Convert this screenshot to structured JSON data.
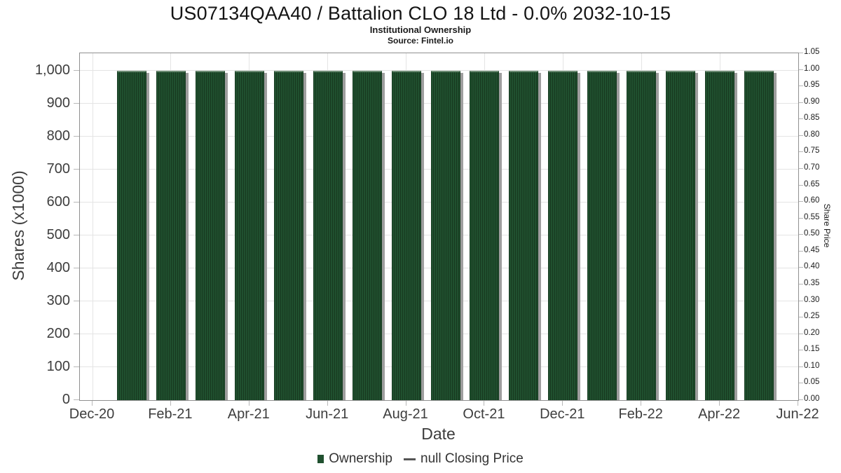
{
  "header": {
    "title": "US07134QAA40 / Battalion CLO 18 Ltd - 0.0% 2032-10-15",
    "subtitle": "Institutional Ownership",
    "source": "Source: Fintel.io"
  },
  "chart_data": {
    "type": "bar",
    "title": "US07134QAA40 / Battalion CLO 18 Ltd - 0.0% 2032-10-15",
    "subtitle": "Institutional Ownership",
    "source": "Source: Fintel.io",
    "xlabel": "Date",
    "ylabel_left": "Shares (x1000)",
    "ylabel_right": "Share Price",
    "categories": [
      "Jan-21",
      "Feb-21",
      "Mar-21",
      "Apr-21",
      "May-21",
      "Jun-21",
      "Jul-21",
      "Aug-21",
      "Sep-21",
      "Oct-21",
      "Nov-21",
      "Dec-21",
      "Jan-22",
      "Feb-22",
      "Mar-22",
      "Apr-22",
      "May-22"
    ],
    "series": [
      {
        "name": "Ownership",
        "type": "bar",
        "axis": "left",
        "values": [
          1000,
          1000,
          1000,
          1000,
          1000,
          1000,
          1000,
          1000,
          1000,
          1000,
          1000,
          1000,
          1000,
          1000,
          1000,
          1000,
          1000
        ]
      },
      {
        "name": "null Closing Price",
        "type": "line",
        "axis": "right",
        "values": null
      }
    ],
    "x_ticks": [
      "Dec-20",
      "Feb-21",
      "Apr-21",
      "Jun-21",
      "Aug-21",
      "Oct-21",
      "Dec-21",
      "Feb-22",
      "Apr-22",
      "Jun-22"
    ],
    "y_left_ticks": [
      "0",
      "100",
      "200",
      "300",
      "400",
      "500",
      "600",
      "700",
      "800",
      "900",
      "1,000"
    ],
    "y_right_ticks": [
      "0.00",
      "0.05",
      "0.10",
      "0.15",
      "0.20",
      "0.25",
      "0.30",
      "0.35",
      "0.40",
      "0.45",
      "0.50",
      "0.55",
      "0.60",
      "0.65",
      "0.70",
      "0.75",
      "0.80",
      "0.85",
      "0.90",
      "0.95",
      "1.00",
      "1.05"
    ],
    "ylim_left": [
      0,
      1053
    ],
    "ylim_right": [
      0,
      1.05
    ],
    "grid": true,
    "legend_position": "bottom",
    "colors": {
      "bar_fill": "#20502f",
      "bar_stripe": "#17391f",
      "bar_shadow": "#9e9e9e",
      "gridline": "#e4e4e4",
      "plot_border": "#8f8f8f",
      "legend_dash": "#555555"
    },
    "legend": [
      {
        "label": "Ownership",
        "marker": "square",
        "color": "#20502f"
      },
      {
        "label": "null Closing Price",
        "marker": "dash",
        "color": "#555555"
      }
    ]
  }
}
